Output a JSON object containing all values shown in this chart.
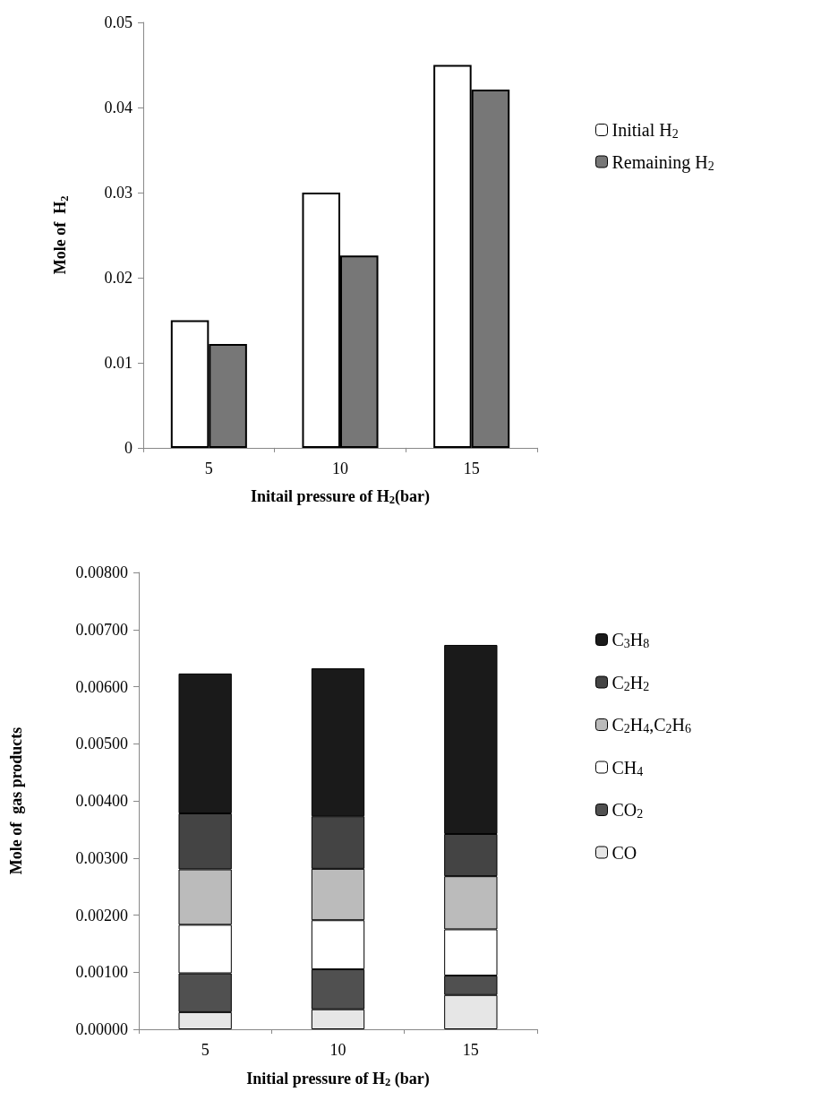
{
  "chart_data": [
    {
      "type": "bar",
      "xlabel": "Initail pressure of H$_{2}$(bar)",
      "ylabel": "Mole of  H$_{2}$",
      "categories": [
        "5",
        "10",
        "15"
      ],
      "series": [
        {
          "name": "Initial H$_{2}$",
          "color": "#ffffff",
          "values": [
            0.015,
            0.03,
            0.045
          ]
        },
        {
          "name": "Remaining H$_{2}$",
          "color": "#777777",
          "values": [
            0.0122,
            0.0226,
            0.0421
          ]
        }
      ],
      "ylim": [
        0,
        0.05
      ],
      "yticks": [
        0,
        0.01,
        0.02,
        0.03,
        0.04,
        0.05
      ],
      "grid": false,
      "legend": "right"
    },
    {
      "type": "bar",
      "stacked": true,
      "xlabel": "Initial pressure of H$_{2}$ (bar)",
      "ylabel": "Mole of  gas products",
      "categories": [
        "5",
        "10",
        "15"
      ],
      "series": [
        {
          "name": "CO",
          "color": "#e6e6e6",
          "values": [
            0.0003,
            0.00035,
            0.0006
          ]
        },
        {
          "name": "CO$_{2}$",
          "color": "#505050",
          "values": [
            0.00068,
            0.0007,
            0.00034
          ]
        },
        {
          "name": "CH$_{4}$",
          "color": "#ffffff",
          "values": [
            0.00085,
            0.00086,
            0.00081
          ]
        },
        {
          "name": "C$_{2}$H$_{4}$,C$_{2}$H$_{6}$",
          "color": "#bbbbbb",
          "values": [
            0.00097,
            0.0009,
            0.00093
          ]
        },
        {
          "name": "C$_{2}$H$_{2}$",
          "color": "#444444",
          "values": [
            0.00098,
            0.00092,
            0.00074
          ]
        },
        {
          "name": "C$_{3}$H$_{8}$",
          "color": "#1a1a1a",
          "values": [
            0.00245,
            0.00259,
            0.00331
          ]
        }
      ],
      "ylim": [
        0,
        0.008
      ],
      "yticks": [
        {
          "value": 0,
          "label": "0.00000"
        },
        {
          "value": 0.001,
          "label": "0.00100"
        },
        {
          "value": 0.002,
          "label": "0.00200"
        },
        {
          "value": 0.003,
          "label": "0.00300"
        },
        {
          "value": 0.004,
          "label": "0.00400"
        },
        {
          "value": 0.005,
          "label": "0.00500"
        },
        {
          "value": 0.006,
          "label": "0.00600"
        },
        {
          "value": 0.007,
          "label": "0.00700"
        },
        {
          "value": 0.008,
          "label": "0.00800"
        }
      ],
      "grid": false,
      "legend": "right"
    }
  ]
}
